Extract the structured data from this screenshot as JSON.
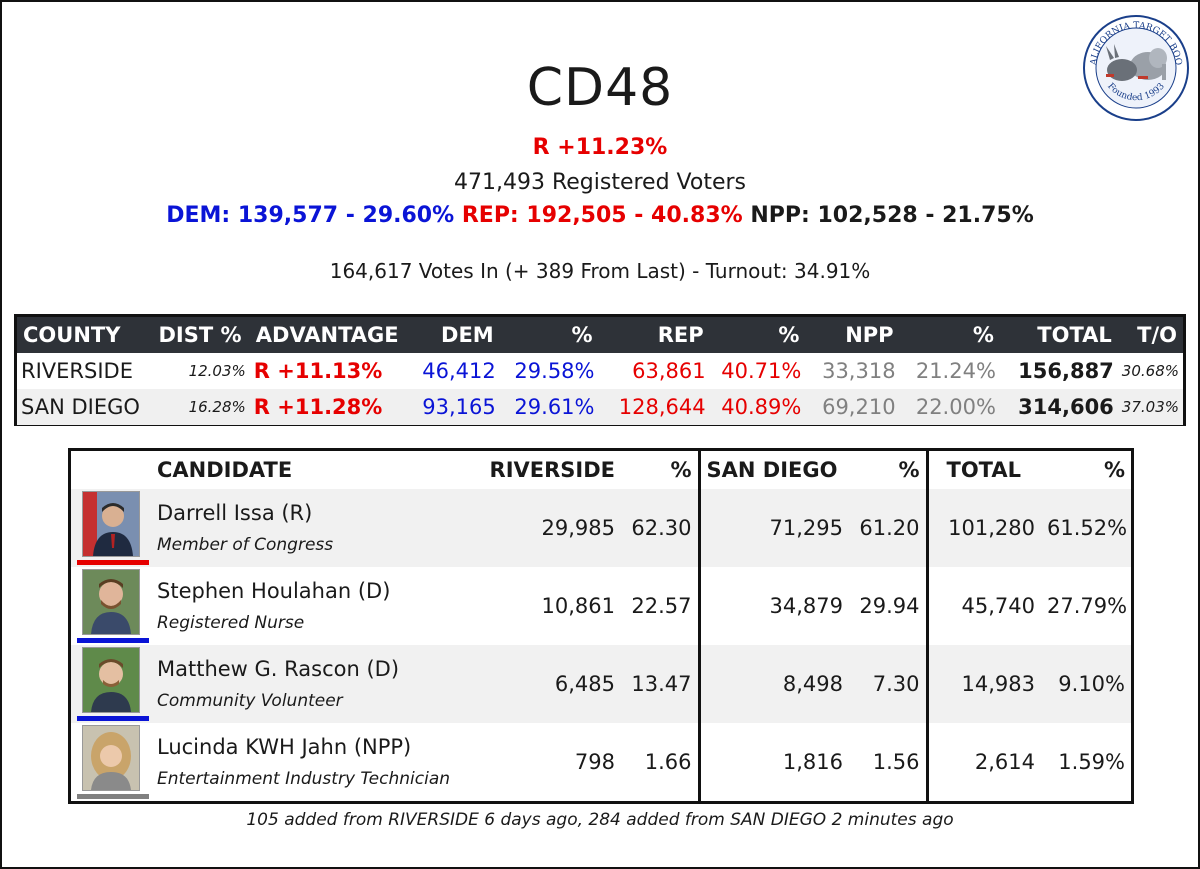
{
  "header": {
    "title": "CD48",
    "advantage": "R +11.23%",
    "registered": "471,493 Registered Voters",
    "dem": "DEM: 139,577 - 29.60%",
    "rep": "REP: 192,505 - 40.83%",
    "npp": "NPP: 102,528 - 21.75%",
    "votes_in": "164,617 Votes In (+ 389 From Last) - Turnout: 34.91%"
  },
  "logo": {
    "top_text": "CALIFORNIA TARGET BOOK",
    "bottom_text": "Founded 1993"
  },
  "county_table": {
    "headers": [
      "COUNTY",
      "DIST %",
      "ADVANTAGE",
      "DEM",
      "%",
      "REP",
      "%",
      "NPP",
      "%",
      "TOTAL",
      "T/O"
    ],
    "rows": [
      [
        "RIVERSIDE",
        "12.03%",
        "R +11.13%",
        "46,412",
        "29.58%",
        "63,861",
        "40.71%",
        "33,318",
        "21.24%",
        "156,887",
        "30.68%"
      ],
      [
        "SAN DIEGO",
        "16.28%",
        "R +11.28%",
        "93,165",
        "29.61%",
        "128,644",
        "40.89%",
        "69,210",
        "22.00%",
        "314,606",
        "37.03%"
      ]
    ]
  },
  "candidate_table": {
    "headers": [
      "CANDIDATE",
      "RIVERSIDE",
      "%",
      "SAN DIEGO",
      "%",
      "TOTAL",
      "%"
    ],
    "rows": [
      {
        "name": "Darrell Issa (R)",
        "job": "Member of Congress",
        "party_color": "#e60000",
        "riv": "29,985",
        "riv_pct": "62.30",
        "sd": "71,295",
        "sd_pct": "61.20",
        "total": "101,280",
        "total_pct": "61.52%"
      },
      {
        "name": "Stephen Houlahan (D)",
        "job": "Registered Nurse",
        "party_color": "#0a14d6",
        "riv": "10,861",
        "riv_pct": "22.57",
        "sd": "34,879",
        "sd_pct": "29.94",
        "total": "45,740",
        "total_pct": "27.79%"
      },
      {
        "name": "Matthew G. Rascon (D)",
        "job": "Community Volunteer",
        "party_color": "#0a14d6",
        "riv": "6,485",
        "riv_pct": "13.47",
        "sd": "8,498",
        "sd_pct": "7.30",
        "total": "14,983",
        "total_pct": "9.10%"
      },
      {
        "name": "Lucinda KWH Jahn (NPP)",
        "job": "Entertainment Industry Technician",
        "party_color": "#808080",
        "riv": "798",
        "riv_pct": "1.66",
        "sd": "1,816",
        "sd_pct": "1.56",
        "total": "2,614",
        "total_pct": "1.59%"
      }
    ]
  },
  "footnote": "105 added from RIVERSIDE 6 days ago, 284 added from SAN DIEGO 2 minutes ago"
}
